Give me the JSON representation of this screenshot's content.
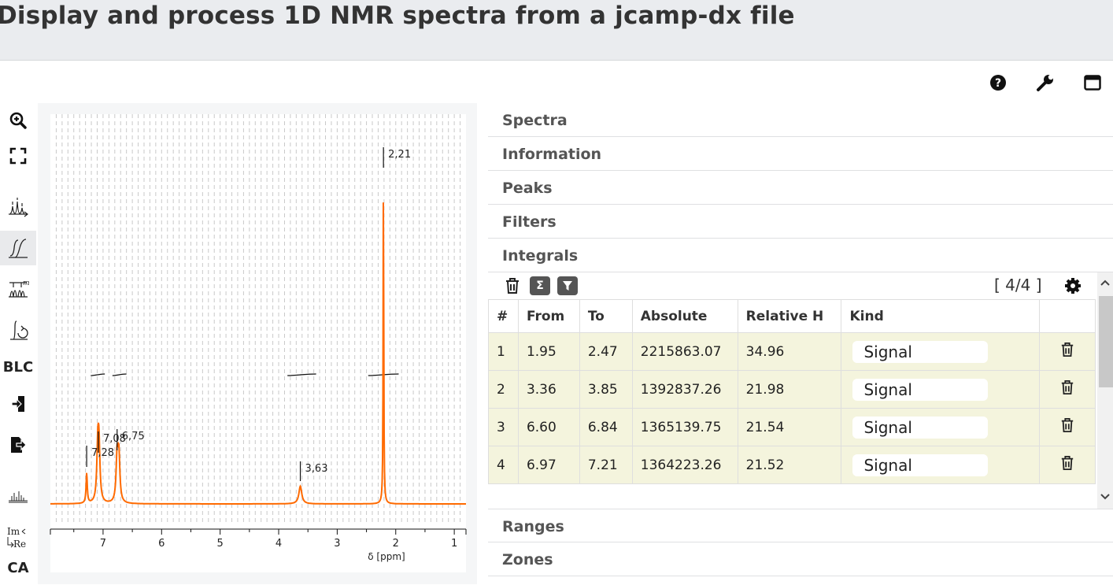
{
  "page": {
    "title": "Display and process 1D NMR spectra from a jcamp-dx file"
  },
  "topbar": {
    "icons": [
      "help-icon",
      "wrench-icon",
      "window-icon"
    ]
  },
  "toolbar": {
    "items": [
      {
        "name": "zoom-in-icon"
      },
      {
        "name": "fullscreen-icon"
      },
      {
        "name": "peak-picking-icon"
      },
      {
        "name": "integral-icon",
        "active": true
      },
      {
        "name": "multiplet-icon"
      },
      {
        "name": "phase-correction-icon"
      },
      {
        "name": "baseline-correction",
        "label": "BLC"
      },
      {
        "name": "import-icon"
      },
      {
        "name": "export-icon"
      },
      {
        "name": "spectrum-stack-icon"
      },
      {
        "name": "real-imaginary-icon",
        "label_top": "Im",
        "label_bottom": "Re"
      },
      {
        "name": "ca-tool",
        "label": "CA"
      }
    ]
  },
  "chart_data": {
    "type": "line",
    "title": "",
    "xlabel": "δ [ppm]",
    "ylabel": "",
    "xlim": [
      7.9,
      0.8
    ],
    "x_reversed": true,
    "x_ticks": [
      7,
      6,
      5,
      4,
      3,
      2,
      1
    ],
    "grid": true,
    "series_color": "#ff6a00",
    "series": [
      {
        "peaks": [
          {
            "ppm": 7.28,
            "height": 0.06,
            "width": 0.012
          },
          {
            "ppm": 7.09,
            "height": 0.1,
            "width": 0.02
          },
          {
            "ppm": 7.07,
            "height": 0.1,
            "width": 0.02
          },
          {
            "ppm": 6.76,
            "height": 0.09,
            "width": 0.02
          },
          {
            "ppm": 6.73,
            "height": 0.09,
            "width": 0.02
          },
          {
            "ppm": 3.63,
            "height": 0.035,
            "width": 0.03
          },
          {
            "ppm": 2.21,
            "height": 0.66,
            "width": 0.006
          }
        ]
      }
    ],
    "peak_labels": [
      "7,28",
      "7,08",
      "6,75",
      "3,63",
      "2,21"
    ],
    "integrals": [
      {
        "from": 7.21,
        "to": 6.97
      },
      {
        "from": 6.84,
        "to": 6.6
      },
      {
        "from": 3.85,
        "to": 3.36
      },
      {
        "from": 2.47,
        "to": 1.95
      }
    ]
  },
  "panel": {
    "sections": [
      {
        "label": "Spectra"
      },
      {
        "label": "Information"
      },
      {
        "label": "Peaks"
      },
      {
        "label": "Filters"
      },
      {
        "label": "Integrals"
      },
      {
        "label": "Ranges"
      },
      {
        "label": "Zones"
      }
    ],
    "integrals": {
      "counter": "[ 4/4 ]",
      "sum_symbol": "Σ",
      "columns": [
        "#",
        "From",
        "To",
        "Absolute",
        "Relative H",
        "Kind",
        ""
      ],
      "rows": [
        {
          "n": "1",
          "from": "1.95",
          "to": "2.47",
          "absolute": "2215863.07",
          "relative": "34.96",
          "kind": "Signal"
        },
        {
          "n": "2",
          "from": "3.36",
          "to": "3.85",
          "absolute": "1392837.26",
          "relative": "21.98",
          "kind": "Signal"
        },
        {
          "n": "3",
          "from": "6.60",
          "to": "6.84",
          "absolute": "1365139.75",
          "relative": "21.54",
          "kind": "Signal"
        },
        {
          "n": "4",
          "from": "6.97",
          "to": "7.21",
          "absolute": "1364223.26",
          "relative": "21.52",
          "kind": "Signal"
        }
      ]
    }
  }
}
